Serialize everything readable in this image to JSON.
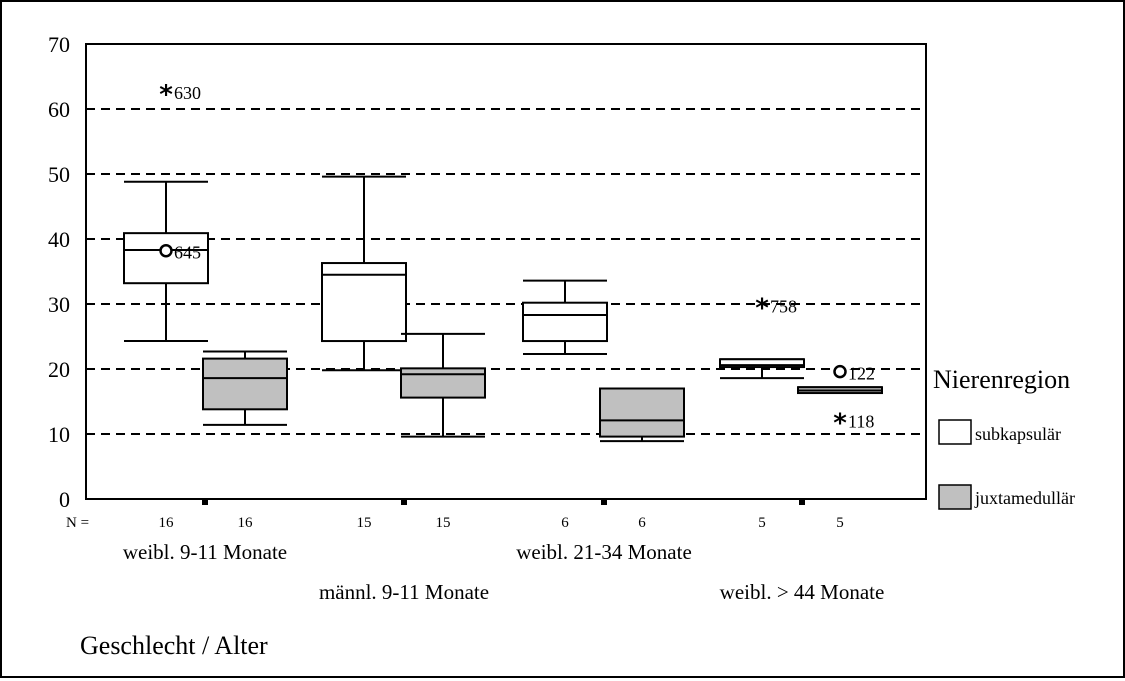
{
  "chart_data": {
    "type": "boxplot",
    "ylim": [
      0,
      70
    ],
    "yticks": [
      0,
      10,
      20,
      30,
      40,
      50,
      60,
      70
    ],
    "grid": "dashed horizontal",
    "xlabel": "Geschlecht / Alter",
    "legend": {
      "title": "Nierenregion",
      "placement": "right",
      "items": [
        {
          "label": "subkapsulär",
          "color": "#ffffff"
        },
        {
          "label": "juxtamedullär",
          "color": "#c0c0c0"
        }
      ]
    },
    "n_prefix": "N =",
    "groups": [
      {
        "label": "weibl. 9-11 Monate",
        "label_row": 1,
        "boxes": [
          {
            "series": "subkapsulär",
            "n": "16",
            "whisker_low": 24.3,
            "q1": 33.2,
            "median": 38.3,
            "q3": 40.9,
            "whisker_high": 48.8
          },
          {
            "series": "juxtamedullär",
            "n": "16",
            "whisker_low": 11.4,
            "q1": 13.8,
            "median": 18.6,
            "q3": 21.6,
            "whisker_high": 22.7
          }
        ],
        "outliers": [
          {
            "series": "subkapsulär",
            "value": 62.8,
            "marker": "star",
            "label": "630"
          },
          {
            "series": "subkapsulär",
            "value": 38.2,
            "marker": "circle",
            "label": "645"
          }
        ]
      },
      {
        "label": "männl. 9-11 Monate",
        "label_row": 2,
        "boxes": [
          {
            "series": "subkapsulär",
            "n": "15",
            "whisker_low": 19.8,
            "q1": 24.3,
            "median": 34.5,
            "q3": 36.3,
            "whisker_high": 49.6
          },
          {
            "series": "juxtamedullär",
            "n": "15",
            "whisker_low": 9.6,
            "q1": 15.6,
            "median": 19.2,
            "q3": 20.1,
            "whisker_high": 25.4
          }
        ],
        "outliers": []
      },
      {
        "label": "weibl. 21-34 Monate",
        "label_row": 1,
        "boxes": [
          {
            "series": "subkapsulär",
            "n": "6",
            "whisker_low": 22.3,
            "q1": 24.3,
            "median": 28.3,
            "q3": 30.2,
            "whisker_high": 33.6
          },
          {
            "series": "juxtamedullär",
            "n": "6",
            "whisker_low": 8.9,
            "q1": 9.6,
            "median": 12.1,
            "q3": 17.0,
            "whisker_high": 17.0
          }
        ],
        "outliers": []
      },
      {
        "label": "weibl. > 44 Monate",
        "label_row": 2,
        "boxes": [
          {
            "series": "subkapsulär",
            "n": "5",
            "whisker_low": 18.6,
            "q1": 20.3,
            "median": 20.6,
            "q3": 21.5,
            "whisker_high": 21.5
          },
          {
            "series": "juxtamedullär",
            "n": "5",
            "whisker_low": 16.3,
            "q1": 16.3,
            "median": 16.7,
            "q3": 17.2,
            "whisker_high": 17.2
          }
        ],
        "outliers": [
          {
            "series": "subkapsulär",
            "value": 29.9,
            "marker": "star",
            "label": "758"
          },
          {
            "series": "juxtamedullär",
            "value": 19.6,
            "marker": "circle",
            "label": "122"
          },
          {
            "series": "juxtamedullär",
            "value": 12.2,
            "marker": "star",
            "label": "118"
          }
        ]
      }
    ]
  }
}
